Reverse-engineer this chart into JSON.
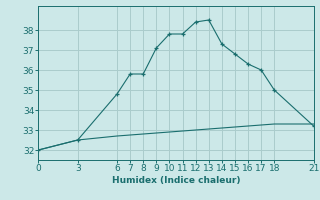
{
  "xlabel": "Humidex (Indice chaleur)",
  "ylabel": "",
  "bg_color": "#cce8e8",
  "grid_color": "#aacccc",
  "line_color": "#1a6e6e",
  "line1_x": [
    0,
    3,
    6,
    7,
    8,
    9,
    10,
    11,
    12,
    13,
    14,
    15,
    16,
    17,
    18,
    21
  ],
  "line1_y": [
    32.0,
    32.5,
    34.8,
    35.8,
    35.8,
    37.1,
    37.8,
    37.8,
    38.4,
    38.5,
    37.3,
    36.8,
    36.3,
    36.0,
    35.0,
    33.2
  ],
  "line2_x": [
    0,
    3,
    6,
    7,
    8,
    9,
    10,
    11,
    12,
    13,
    14,
    15,
    16,
    17,
    18,
    21
  ],
  "line2_y": [
    32.0,
    32.5,
    32.7,
    32.75,
    32.8,
    32.85,
    32.9,
    32.95,
    33.0,
    33.05,
    33.1,
    33.15,
    33.2,
    33.25,
    33.3,
    33.3
  ],
  "xticks": [
    0,
    3,
    6,
    7,
    8,
    9,
    10,
    11,
    12,
    13,
    14,
    15,
    16,
    17,
    18,
    21
  ],
  "yticks": [
    32,
    33,
    34,
    35,
    36,
    37,
    38
  ],
  "xlim": [
    0,
    21
  ],
  "ylim": [
    31.5,
    39.2
  ],
  "axis_fontsize": 6.5,
  "tick_fontsize": 6.5
}
